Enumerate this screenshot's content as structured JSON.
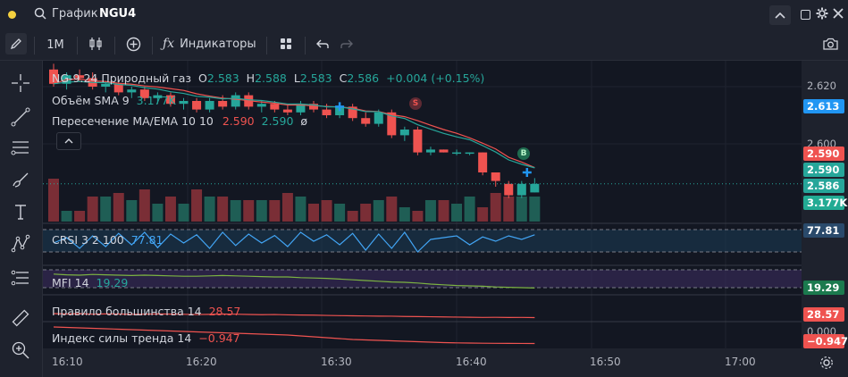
{
  "titlebar": {
    "search_label": "График",
    "symbol": "NGU4"
  },
  "toolbar": {
    "interval": "1M",
    "indicators_label": "Индикаторы"
  },
  "legend": {
    "main": {
      "name": "NG-9.24 Природный газ",
      "o_label": "O",
      "o": "2.583",
      "h_label": "H",
      "h": "2.588",
      "l_label": "L",
      "l": "2.583",
      "c_label": "C",
      "c": "2.586",
      "change": "+0.004 (+0.15%)"
    },
    "volume": {
      "name": "Объём SMA 9",
      "value": "3.177K"
    },
    "ma_cross": {
      "name": "Пересечение MA/EMA 10 10",
      "v1": "2.590",
      "v2": "2.590",
      "glyph": "ø"
    }
  },
  "indicators": {
    "crsi": {
      "name": "CRSI 3 2 100",
      "value": "77.81"
    },
    "mfi": {
      "name": "MFI 14",
      "value": "19.29"
    },
    "majority": {
      "name": "Правило большинства 14",
      "value": "28.57"
    },
    "trend": {
      "name": "Индекс силы тренда 14",
      "value": "−0.947"
    }
  },
  "yaxis": {
    "ticks": [
      "2.620",
      "2.600"
    ],
    "tags": {
      "last_blue": "2.613",
      "ma_red": "2.590",
      "ma_green": "2.590",
      "close": "2.586",
      "volume": "3.177K",
      "crsi": "77.81",
      "mfi": "19.29",
      "majority": "28.57",
      "zero": "0.000",
      "trend": "−0.947"
    }
  },
  "xaxis": {
    "ticks": [
      "16:10",
      "16:20",
      "16:30",
      "16:40",
      "16:50",
      "17:00"
    ]
  },
  "markers": {
    "sell": "S",
    "buy": "B"
  },
  "colors": {
    "up": "#26a69a",
    "down": "#ef5350",
    "accent": "#2962ff",
    "crsi": "#42a5f5",
    "mfi": "#7e57c2"
  },
  "chart_data": {
    "type": "candlestick",
    "candles": [
      [
        2.626,
        2.628,
        2.62,
        2.621
      ],
      [
        2.621,
        2.625,
        2.619,
        2.624
      ],
      [
        2.624,
        2.626,
        2.622,
        2.623
      ],
      [
        2.623,
        2.625,
        2.619,
        2.62
      ],
      [
        2.62,
        2.622,
        2.618,
        2.621
      ],
      [
        2.621,
        2.622,
        2.617,
        2.618
      ],
      [
        2.618,
        2.62,
        2.616,
        2.619
      ],
      [
        2.619,
        2.62,
        2.615,
        2.616
      ],
      [
        2.616,
        2.618,
        2.614,
        2.617
      ],
      [
        2.617,
        2.618,
        2.613,
        2.614
      ],
      [
        2.614,
        2.616,
        2.612,
        2.615
      ],
      [
        2.615,
        2.616,
        2.611,
        2.612
      ],
      [
        2.612,
        2.616,
        2.611,
        2.615
      ],
      [
        2.615,
        2.617,
        2.612,
        2.613
      ],
      [
        2.613,
        2.618,
        2.612,
        2.617
      ],
      [
        2.617,
        2.618,
        2.612,
        2.613
      ],
      [
        2.613,
        2.615,
        2.611,
        2.614
      ],
      [
        2.614,
        2.615,
        2.611,
        2.612
      ],
      [
        2.612,
        2.614,
        2.61,
        2.611
      ],
      [
        2.611,
        2.615,
        2.61,
        2.614
      ],
      [
        2.614,
        2.615,
        2.611,
        2.612
      ],
      [
        2.612,
        2.614,
        2.609,
        2.61
      ],
      [
        2.61,
        2.614,
        2.609,
        2.613
      ],
      [
        2.613,
        2.614,
        2.608,
        2.609
      ],
      [
        2.609,
        2.611,
        2.606,
        2.607
      ],
      [
        2.607,
        2.612,
        2.606,
        2.611
      ],
      [
        2.611,
        2.612,
        2.602,
        2.603
      ],
      [
        2.603,
        2.606,
        2.601,
        2.605
      ],
      [
        2.605,
        2.606,
        2.596,
        2.597
      ],
      [
        2.597,
        2.599,
        2.596,
        2.598
      ],
      [
        2.598,
        2.598,
        2.597,
        2.597
      ],
      [
        2.597,
        2.598,
        2.596,
        2.597
      ],
      [
        2.597,
        2.597,
        2.596,
        2.597
      ],
      [
        2.597,
        2.597,
        2.589,
        2.59
      ],
      [
        2.59,
        2.59,
        2.585,
        2.587
      ],
      [
        2.586,
        2.587,
        2.581,
        2.582
      ],
      [
        2.582,
        2.587,
        2.581,
        2.586
      ],
      [
        2.583,
        2.588,
        2.583,
        2.586
      ]
    ],
    "volumes": [
      12,
      3,
      3,
      7,
      7,
      8,
      6,
      9,
      5,
      7,
      5,
      9,
      7,
      7,
      6,
      6,
      6,
      6,
      8,
      7,
      5,
      6,
      5,
      3,
      5,
      6,
      7,
      4,
      3,
      6,
      6,
      5,
      7,
      4,
      8,
      7,
      7,
      7
    ],
    "crsi": [
      55,
      70,
      40,
      75,
      45,
      82,
      50,
      85,
      42,
      80,
      55,
      78,
      40,
      85,
      48,
      80,
      55,
      76,
      45,
      85,
      60,
      78,
      50,
      82,
      35,
      80,
      40,
      85,
      30,
      65,
      70,
      75,
      50,
      72,
      60,
      75,
      65,
      78
    ],
    "mfi": [
      58,
      56,
      55,
      57,
      56,
      55,
      54,
      55,
      54,
      53,
      52,
      52,
      53,
      54,
      53,
      52,
      51,
      50,
      50,
      48,
      47,
      46,
      44,
      42,
      40,
      38,
      36,
      35,
      33,
      30,
      28,
      26,
      25,
      24,
      22,
      21,
      20,
      19
    ],
    "majority": [
      78,
      72,
      76,
      70,
      74,
      72,
      68,
      70,
      74,
      71,
      69,
      66,
      68,
      72,
      70,
      67,
      64,
      66,
      62,
      60,
      58,
      55,
      52,
      50,
      48,
      46,
      45,
      42,
      40,
      38,
      36,
      34,
      32,
      30,
      31,
      29,
      30,
      28
    ],
    "trend": [
      0.9,
      0.85,
      0.8,
      0.75,
      0.7,
      0.65,
      0.6,
      0.55,
      0.5,
      0.45,
      0.4,
      0.35,
      0.3,
      0.25,
      0.2,
      0.15,
      0.1,
      0.05,
      0,
      -0.1,
      -0.2,
      -0.3,
      -0.4,
      -0.5,
      -0.55,
      -0.6,
      -0.65,
      -0.7,
      -0.75,
      -0.8,
      -0.85,
      -0.88,
      -0.9,
      -0.92,
      -0.93,
      -0.94,
      -0.945,
      -0.947
    ]
  }
}
